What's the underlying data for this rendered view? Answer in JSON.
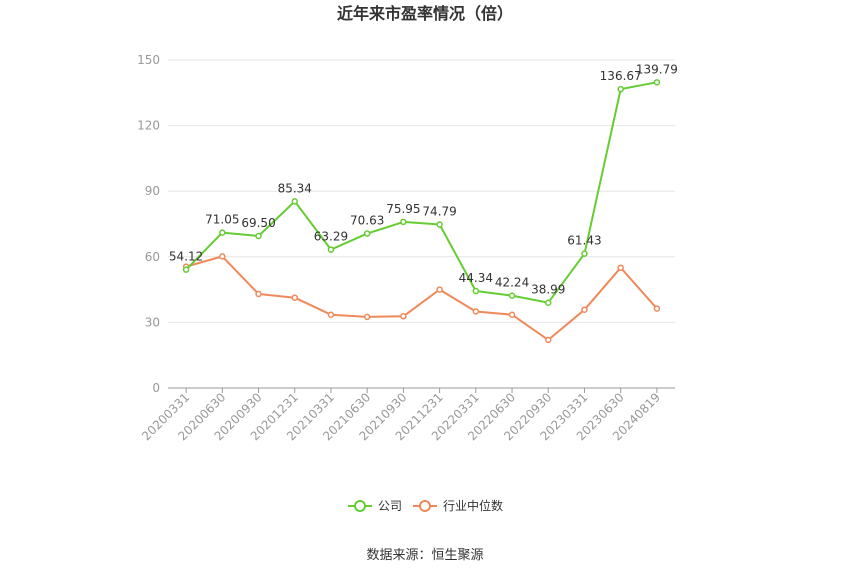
{
  "source_note": "数据来源：恒生聚源",
  "chart_data": {
    "type": "line",
    "title": "近年来市盈率情况（倍）",
    "xlabel": "",
    "ylabel": "",
    "ylim": [
      0,
      150
    ],
    "yticks": [
      0,
      30,
      60,
      90,
      120,
      150
    ],
    "grid": true,
    "legend_position": "bottom",
    "categories": [
      "20200331",
      "20200630",
      "20200930",
      "20201231",
      "20210331",
      "20210630",
      "20210930",
      "20211231",
      "20220331",
      "20220630",
      "20220930",
      "20230331",
      "20230630",
      "20240819"
    ],
    "series": [
      {
        "name": "公司",
        "color": "#66cc33",
        "show_labels": true,
        "values": [
          54.12,
          71.05,
          69.5,
          85.34,
          63.29,
          70.63,
          75.95,
          74.79,
          44.34,
          42.24,
          38.99,
          61.43,
          136.67,
          139.79
        ],
        "labels": [
          "54.12",
          "71.05",
          "69.50",
          "85.34",
          "63.29",
          "70.63",
          "75.95",
          "74.79",
          "44.34",
          "42.24",
          "38.99",
          "61.43",
          "136.67",
          "139.79"
        ]
      },
      {
        "name": "行业中位数",
        "color": "#f0895a",
        "show_labels": false,
        "values": [
          55.5,
          60.2,
          43.0,
          41.3,
          33.5,
          32.5,
          32.8,
          45.0,
          35.0,
          33.5,
          22.0,
          35.8,
          55.0,
          36.3
        ]
      }
    ]
  }
}
